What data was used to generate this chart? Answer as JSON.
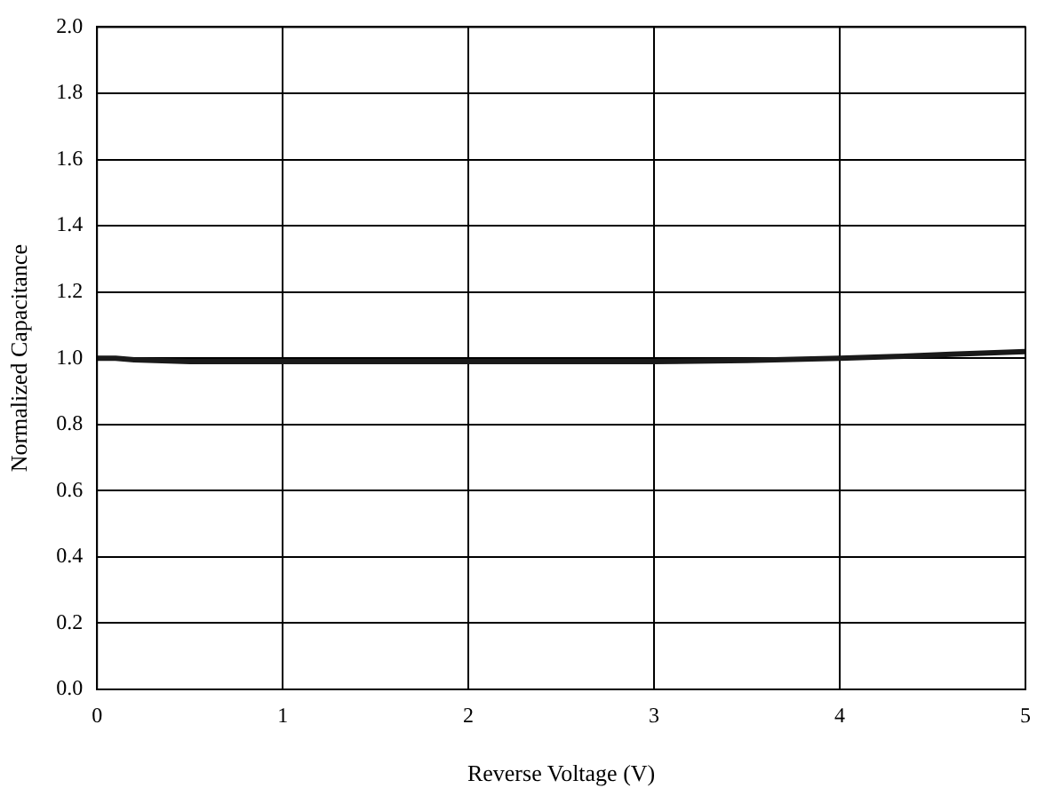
{
  "chart_data": {
    "type": "line",
    "xlabel": "Reverse Voltage (V)",
    "ylabel": "Normalized Capacitance",
    "x": [
      0,
      0.1,
      0.2,
      0.5,
      0.7,
      1,
      1.5,
      2,
      2.5,
      3,
      3.5,
      3.8,
      4,
      4.3,
      4.6,
      5
    ],
    "series": [
      {
        "color": "#1a1a1a",
        "values": [
          1.0,
          1.0,
          0.995,
          0.99,
          0.99,
          0.99,
          0.99,
          0.99,
          0.99,
          0.99,
          0.993,
          0.997,
          1.0,
          1.005,
          1.012,
          1.02
        ]
      }
    ],
    "xlim": [
      0,
      5
    ],
    "xticks": [
      0,
      1,
      2,
      3,
      4,
      5
    ],
    "ylim": [
      0,
      2
    ],
    "yticks": [
      {
        "value": 0,
        "label": "0.0"
      },
      0.2,
      0.4,
      0.6,
      0.8,
      {
        "value": 1,
        "label": "1.0"
      },
      1.2,
      1.4,
      1.6,
      1.8,
      {
        "value": 2,
        "label": "2.0"
      }
    ],
    "grid": true,
    "legend": false,
    "marker": "none",
    "line_style": "solid"
  }
}
